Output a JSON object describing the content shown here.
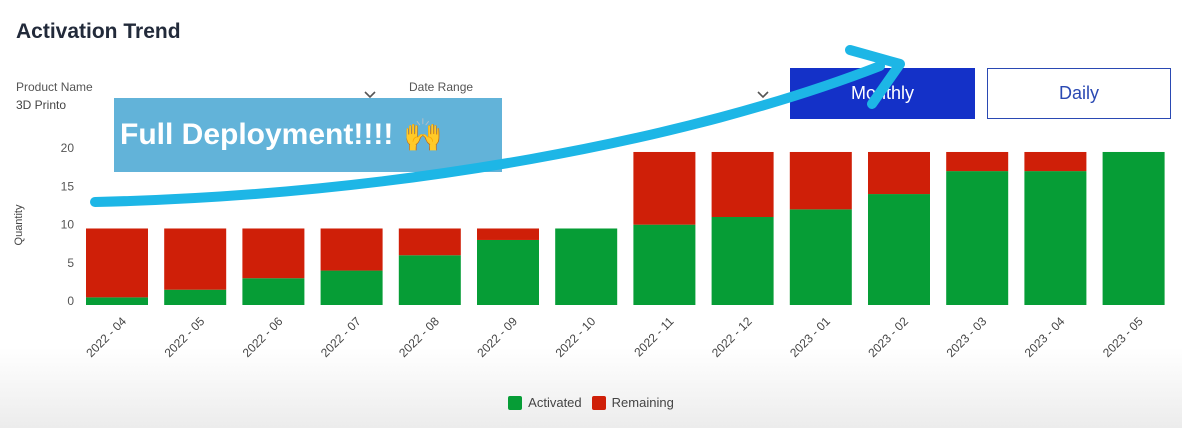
{
  "title": "Activation Trend",
  "filters": {
    "product_label": "Product Name",
    "product_value": "3D Printo",
    "date_label": "Date Range",
    "date_value": ""
  },
  "buttons": {
    "monthly": "Monthly",
    "daily": "Daily"
  },
  "callout": {
    "text": "Full Deployment!!!!",
    "emoji": "🙌"
  },
  "colors": {
    "activated": "#069d36",
    "remaining": "#cf1f08",
    "monthly_button": "#1431c8",
    "arrow": "#1db6e6"
  },
  "chart_data": {
    "type": "bar",
    "stacked": true,
    "ylabel": "Quantity",
    "yticks": [
      0,
      5,
      10,
      15,
      20
    ],
    "ylim": [
      -0.5,
      21
    ],
    "categories": [
      "2022 - 04",
      "2022 - 05",
      "2022 - 06",
      "2022 - 07",
      "2022 - 08",
      "2022 - 09",
      "2022 - 10",
      "2022 - 11",
      "2022 - 12",
      "2023 - 01",
      "2023 - 02",
      "2023 - 03",
      "2023 - 04",
      "2023 - 05"
    ],
    "series": [
      {
        "name": "Activated",
        "values": [
          1,
          2,
          3.5,
          4.5,
          6.5,
          8.5,
          10,
          10.5,
          11.5,
          12.5,
          14.5,
          17.5,
          17.5,
          20
        ]
      },
      {
        "name": "Remaining",
        "values": [
          9,
          8,
          6.5,
          5.5,
          3.5,
          1.5,
          0,
          9.5,
          8.5,
          7.5,
          5.5,
          2.5,
          2.5,
          0
        ]
      }
    ],
    "legend": "bottom-center"
  }
}
